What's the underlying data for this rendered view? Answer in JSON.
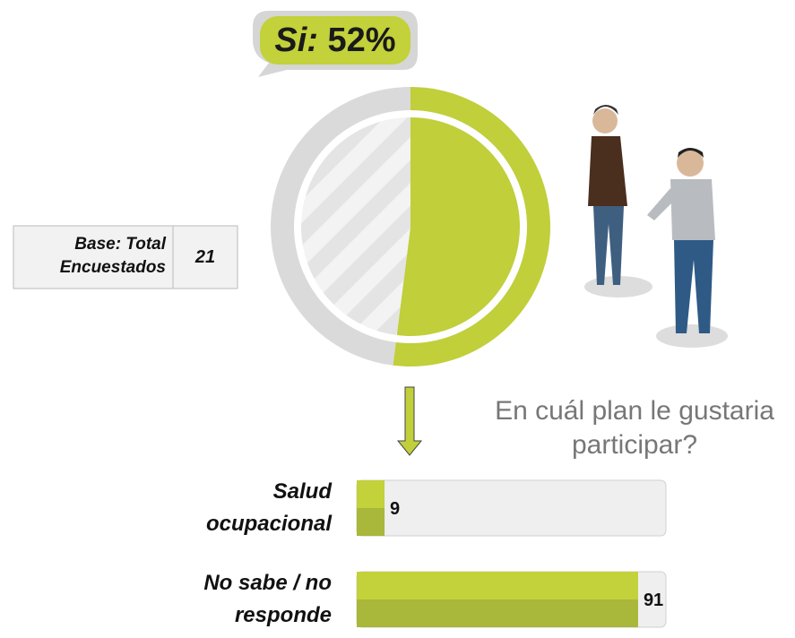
{
  "chart_data": [
    {
      "type": "donut",
      "categories": [
        "Si:",
        null
      ],
      "values": [
        52,
        48
      ],
      "value_labels": [
        "52%",
        null
      ],
      "colors": [
        "#c0cf3a",
        "#dadada"
      ]
    },
    {
      "type": "bar",
      "orientation": "horizontal",
      "title": "En cuál plan le gustaria participar?",
      "categories": [
        "Salud ocupacional",
        "No sabe / no responde"
      ],
      "values": [
        9,
        91
      ],
      "xlim": [
        0,
        100
      ],
      "color": "#c0cf3a"
    }
  ],
  "base_table": {
    "label": "Base: Total Encuestados",
    "value": "21"
  }
}
